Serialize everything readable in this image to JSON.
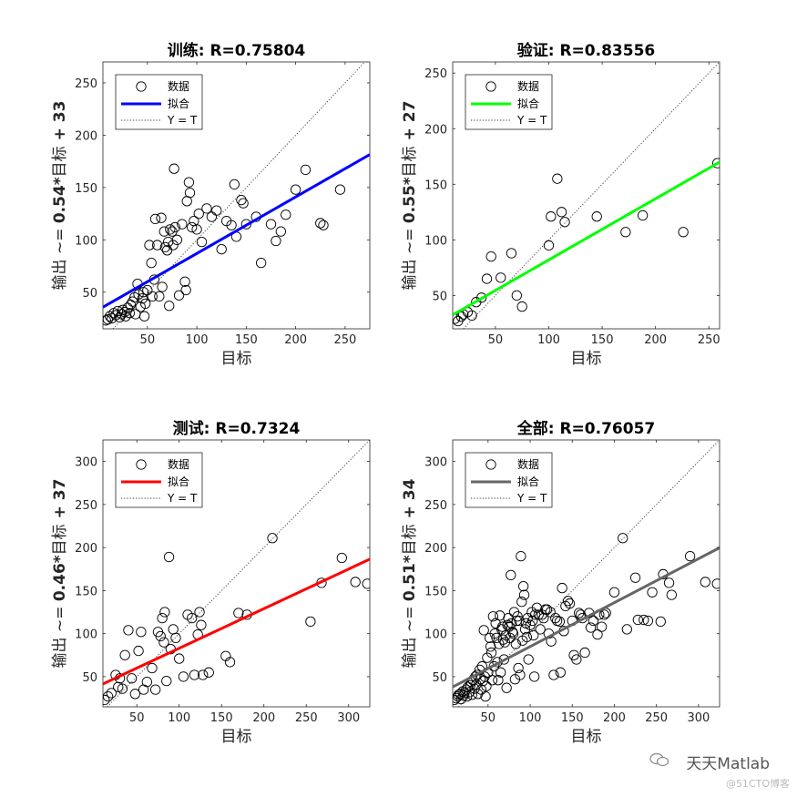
{
  "chart_data": [
    {
      "type": "scatter",
      "title_label": "训练:",
      "title_value": "R=0.75804",
      "xlabel": "目标",
      "ylabel_prefix": "输出 ~= ",
      "ylabel_coef": "0.54*",
      "ylabel_mid": "目标",
      "ylabel_suffix": " + 33",
      "xlim": [
        5,
        275
      ],
      "ylim": [
        15,
        270
      ],
      "xticks": [
        50,
        100,
        150,
        200,
        250
      ],
      "yticks": [
        50,
        100,
        150,
        200,
        250
      ],
      "fit": {
        "slope": 0.54,
        "intercept": 33,
        "color": "#0000ff"
      },
      "legend": [
        "数据",
        "拟合",
        "Y = T"
      ],
      "points": [
        [
          8,
          23
        ],
        [
          10,
          24
        ],
        [
          12,
          27
        ],
        [
          14,
          25
        ],
        [
          16,
          30
        ],
        [
          18,
          28
        ],
        [
          20,
          32
        ],
        [
          22,
          26
        ],
        [
          24,
          29
        ],
        [
          25,
          33
        ],
        [
          27,
          31
        ],
        [
          28,
          27
        ],
        [
          30,
          35
        ],
        [
          32,
          30
        ],
        [
          33,
          38
        ],
        [
          35,
          41
        ],
        [
          37,
          45
        ],
        [
          38,
          29
        ],
        [
          40,
          58
        ],
        [
          41,
          48
        ],
        [
          43,
          36
        ],
        [
          45,
          44
        ],
        [
          46,
          50
        ],
        [
          47,
          27
        ],
        [
          48,
          39
        ],
        [
          50,
          52
        ],
        [
          52,
          95
        ],
        [
          54,
          78
        ],
        [
          55,
          46
        ],
        [
          57,
          62
        ],
        [
          58,
          120
        ],
        [
          60,
          95
        ],
        [
          62,
          46
        ],
        [
          64,
          121
        ],
        [
          65,
          55
        ],
        [
          67,
          108
        ],
        [
          68,
          93
        ],
        [
          70,
          90
        ],
        [
          71,
          98
        ],
        [
          72,
          37
        ],
        [
          73,
          110
        ],
        [
          75,
          108
        ],
        [
          76,
          95
        ],
        [
          77,
          168
        ],
        [
          78,
          112
        ],
        [
          80,
          100
        ],
        [
          82,
          47
        ],
        [
          85,
          115
        ],
        [
          88,
          60
        ],
        [
          89,
          52
        ],
        [
          90,
          137
        ],
        [
          92,
          155
        ],
        [
          93,
          145
        ],
        [
          95,
          112
        ],
        [
          97,
          118
        ],
        [
          100,
          110
        ],
        [
          102,
          125
        ],
        [
          105,
          98
        ],
        [
          110,
          130
        ],
        [
          115,
          122
        ],
        [
          120,
          128
        ],
        [
          125,
          91
        ],
        [
          130,
          118
        ],
        [
          135,
          114
        ],
        [
          138,
          153
        ],
        [
          140,
          103
        ],
        [
          145,
          138
        ],
        [
          147,
          135
        ],
        [
          150,
          115
        ],
        [
          160,
          122
        ],
        [
          165,
          78
        ],
        [
          175,
          115
        ],
        [
          180,
          99
        ],
        [
          185,
          108
        ],
        [
          190,
          124
        ],
        [
          200,
          148
        ],
        [
          210,
          167
        ],
        [
          225,
          116
        ],
        [
          228,
          114
        ],
        [
          245,
          148
        ]
      ]
    },
    {
      "type": "scatter",
      "title_label": "验证:",
      "title_value": "R=0.83556",
      "xlabel": "目标",
      "ylabel_prefix": "输出 ~= ",
      "ylabel_coef": "0.55*",
      "ylabel_mid": "目标",
      "ylabel_suffix": " + 27",
      "xlim": [
        10,
        260
      ],
      "ylim": [
        20,
        260
      ],
      "xticks": [
        50,
        100,
        150,
        200,
        250
      ],
      "yticks": [
        50,
        100,
        150,
        200,
        250
      ],
      "fit": {
        "slope": 0.55,
        "intercept": 27,
        "color": "#00ff00"
      },
      "legend": [
        "数据",
        "拟合",
        "Y = T"
      ],
      "points": [
        [
          12,
          29
        ],
        [
          15,
          27
        ],
        [
          18,
          31
        ],
        [
          20,
          33
        ],
        [
          24,
          35
        ],
        [
          28,
          32
        ],
        [
          32,
          44
        ],
        [
          37,
          48
        ],
        [
          42,
          65
        ],
        [
          46,
          85
        ],
        [
          55,
          66
        ],
        [
          65,
          88
        ],
        [
          70,
          50
        ],
        [
          75,
          40
        ],
        [
          100,
          95
        ],
        [
          102,
          121
        ],
        [
          108,
          155
        ],
        [
          112,
          125
        ],
        [
          115,
          116
        ],
        [
          145,
          121
        ],
        [
          172,
          107
        ],
        [
          188,
          122
        ],
        [
          226,
          107
        ],
        [
          258,
          169
        ]
      ]
    },
    {
      "type": "scatter",
      "title_label": "测试:",
      "title_value": "R=0.7324",
      "xlabel": "目标",
      "ylabel_prefix": "输出 ~= ",
      "ylabel_coef": "0.46*",
      "ylabel_mid": "目标",
      "ylabel_suffix": " + 37",
      "xlim": [
        10,
        325
      ],
      "ylim": [
        15,
        325
      ],
      "xticks": [
        50,
        100,
        150,
        200,
        250,
        300
      ],
      "yticks": [
        50,
        100,
        150,
        200,
        250,
        300
      ],
      "fit": {
        "slope": 0.46,
        "intercept": 37,
        "color": "#ff0000"
      },
      "legend": [
        "数据",
        "拟合",
        "Y = T"
      ],
      "points": [
        [
          12,
          23
        ],
        [
          16,
          27
        ],
        [
          20,
          31
        ],
        [
          25,
          52
        ],
        [
          28,
          38
        ],
        [
          30,
          48
        ],
        [
          33,
          36
        ],
        [
          36,
          75
        ],
        [
          40,
          104
        ],
        [
          44,
          48
        ],
        [
          48,
          30
        ],
        [
          52,
          80
        ],
        [
          55,
          102
        ],
        [
          58,
          35
        ],
        [
          62,
          44
        ],
        [
          68,
          60
        ],
        [
          72,
          35
        ],
        [
          75,
          102
        ],
        [
          78,
          97
        ],
        [
          80,
          118
        ],
        [
          82,
          90
        ],
        [
          83,
          125
        ],
        [
          85,
          45
        ],
        [
          88,
          189
        ],
        [
          90,
          82
        ],
        [
          93,
          105
        ],
        [
          96,
          95
        ],
        [
          100,
          71
        ],
        [
          105,
          50
        ],
        [
          110,
          122
        ],
        [
          115,
          118
        ],
        [
          118,
          52
        ],
        [
          122,
          99
        ],
        [
          124,
          125
        ],
        [
          126,
          110
        ],
        [
          128,
          52
        ],
        [
          135,
          55
        ],
        [
          155,
          74
        ],
        [
          160,
          67
        ],
        [
          170,
          124
        ],
        [
          180,
          122
        ],
        [
          210,
          211
        ],
        [
          255,
          114
        ],
        [
          268,
          159
        ],
        [
          292,
          188
        ],
        [
          308,
          160
        ],
        [
          322,
          158
        ]
      ]
    },
    {
      "type": "scatter",
      "title_label": "全部:",
      "title_value": "R=0.76057",
      "xlabel": "目标",
      "ylabel_prefix": "输出 ~= ",
      "ylabel_coef": "0.51*",
      "ylabel_mid": "目标",
      "ylabel_suffix": " + 34",
      "xlim": [
        8,
        325
      ],
      "ylim": [
        15,
        325
      ],
      "xticks": [
        50,
        100,
        150,
        200,
        250,
        300
      ],
      "yticks": [
        50,
        100,
        150,
        200,
        250,
        300
      ],
      "fit": {
        "slope": 0.51,
        "intercept": 34,
        "color": "#666666"
      },
      "legend": [
        "数据",
        "拟合",
        "Y = T"
      ],
      "points": [
        [
          10,
          23
        ],
        [
          12,
          25
        ],
        [
          14,
          27
        ],
        [
          15,
          29
        ],
        [
          17,
          30
        ],
        [
          18,
          24
        ],
        [
          20,
          33
        ],
        [
          21,
          28
        ],
        [
          22,
          31
        ],
        [
          24,
          35
        ],
        [
          25,
          27
        ],
        [
          26,
          38
        ],
        [
          28,
          32
        ],
        [
          29,
          40
        ],
        [
          30,
          44
        ],
        [
          31,
          29
        ],
        [
          32,
          46
        ],
        [
          34,
          36
        ],
        [
          35,
          50
        ],
        [
          36,
          41
        ],
        [
          37,
          52
        ],
        [
          38,
          30
        ],
        [
          40,
          58
        ],
        [
          41,
          47
        ],
        [
          42,
          35
        ],
        [
          43,
          62
        ],
        [
          44,
          45
        ],
        [
          45,
          104
        ],
        [
          46,
          50
        ],
        [
          47,
          27
        ],
        [
          48,
          39
        ],
        [
          49,
          72
        ],
        [
          50,
          55
        ],
        [
          52,
          95
        ],
        [
          53,
          85
        ],
        [
          54,
          78
        ],
        [
          55,
          46
        ],
        [
          56,
          120
        ],
        [
          57,
          62
        ],
        [
          58,
          100
        ],
        [
          59,
          112
        ],
        [
          60,
          95
        ],
        [
          61,
          67
        ],
        [
          62,
          46
        ],
        [
          63,
          88
        ],
        [
          64,
          121
        ],
        [
          65,
          55
        ],
        [
          66,
          105
        ],
        [
          67,
          108
        ],
        [
          68,
          93
        ],
        [
          69,
          70
        ],
        [
          70,
          90
        ],
        [
          71,
          98
        ],
        [
          72,
          37
        ],
        [
          73,
          110
        ],
        [
          74,
          118
        ],
        [
          75,
          108
        ],
        [
          76,
          95
        ],
        [
          77,
          168
        ],
        [
          78,
          112
        ],
        [
          79,
          102
        ],
        [
          80,
          100
        ],
        [
          81,
          125
        ],
        [
          82,
          47
        ],
        [
          83,
          88
        ],
        [
          84,
          115
        ],
        [
          85,
          120
        ],
        [
          86,
          60
        ],
        [
          87,
          115
        ],
        [
          88,
          52
        ],
        [
          89,
          190
        ],
        [
          90,
          137
        ],
        [
          91,
          92
        ],
        [
          92,
          155
        ],
        [
          93,
          145
        ],
        [
          94,
          105
        ],
        [
          95,
          112
        ],
        [
          96,
          96
        ],
        [
          97,
          118
        ],
        [
          98,
          70
        ],
        [
          100,
          110
        ],
        [
          102,
          125
        ],
        [
          103,
          115
        ],
        [
          104,
          98
        ],
        [
          105,
          50
        ],
        [
          106,
          122
        ],
        [
          108,
          130
        ],
        [
          110,
          122
        ],
        [
          112,
          105
        ],
        [
          114,
          122
        ],
        [
          116,
          118
        ],
        [
          118,
          128
        ],
        [
          120,
          128
        ],
        [
          122,
          100
        ],
        [
          124,
          125
        ],
        [
          125,
          91
        ],
        [
          128,
          52
        ],
        [
          130,
          118
        ],
        [
          132,
          115
        ],
        [
          135,
          114
        ],
        [
          136,
          55
        ],
        [
          138,
          153
        ],
        [
          140,
          103
        ],
        [
          142,
          132
        ],
        [
          145,
          138
        ],
        [
          147,
          135
        ],
        [
          150,
          115
        ],
        [
          152,
          75
        ],
        [
          155,
          70
        ],
        [
          158,
          124
        ],
        [
          160,
          122
        ],
        [
          162,
          118
        ],
        [
          165,
          78
        ],
        [
          170,
          124
        ],
        [
          172,
          107
        ],
        [
          175,
          115
        ],
        [
          180,
          99
        ],
        [
          182,
          122
        ],
        [
          185,
          108
        ],
        [
          188,
          122
        ],
        [
          190,
          124
        ],
        [
          200,
          148
        ],
        [
          210,
          211
        ],
        [
          215,
          105
        ],
        [
          225,
          165
        ],
        [
          228,
          116
        ],
        [
          235,
          116
        ],
        [
          240,
          115
        ],
        [
          245,
          148
        ],
        [
          255,
          114
        ],
        [
          258,
          169
        ],
        [
          265,
          159
        ],
        [
          268,
          145
        ],
        [
          290,
          190
        ],
        [
          308,
          160
        ],
        [
          322,
          158
        ]
      ]
    }
  ],
  "watermark": {
    "main": "天天Matlab",
    "sub": "@51CTO博客"
  }
}
